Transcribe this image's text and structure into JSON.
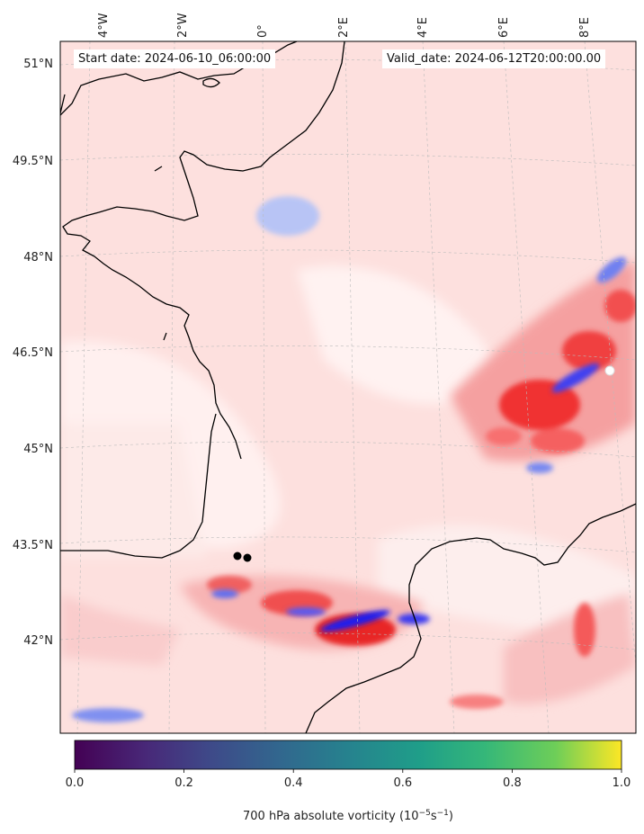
{
  "map": {
    "start_label": "Start date: 2024-06-10_06:00:00",
    "valid_label": "Valid_date: 2024-06-12T20:00:00.00",
    "lon_labels": [
      "4°W",
      "2°W",
      "0°",
      "2°E",
      "4°E",
      "6°E",
      "8°E"
    ],
    "lat_labels": [
      "51°N",
      "49.5°N",
      "48°N",
      "46.5°N",
      "45°N",
      "43.5°N",
      "42°N"
    ],
    "colors": {
      "positive": "#ff0000",
      "negative": "#0000ff",
      "background_pink": "#fde0de",
      "coastline": "#000000"
    }
  },
  "colorbar": {
    "ticks": [
      "0.0",
      "0.2",
      "0.4",
      "0.6",
      "0.8",
      "1.0"
    ],
    "label": "700 hPa absolute vorticity (10",
    "label_exp1": "−5",
    "label_mid": "s",
    "label_exp2": "−1",
    "label_end": ")",
    "colormap": "viridis"
  }
}
